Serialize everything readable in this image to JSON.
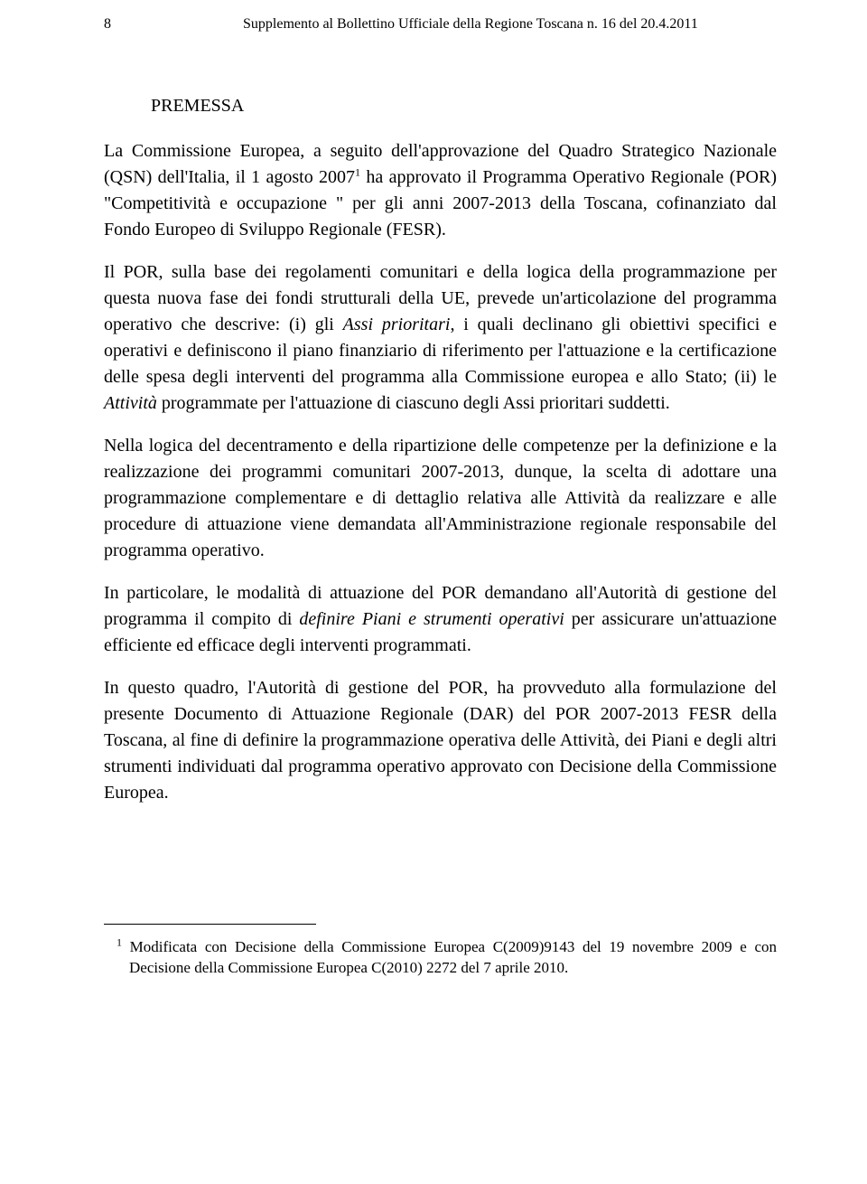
{
  "header": {
    "page_number": "8",
    "running_title": "Supplemento al Bollettino Ufficiale della Regione Toscana n. 16 del 20.4.2011"
  },
  "section_title": "PREMESSA",
  "paragraphs": {
    "p1_a": "La Commissione Europea, a seguito dell'approvazione del Quadro Strategico Nazionale (QSN) dell'Italia, il 1 agosto 2007",
    "p1_sup": "1",
    "p1_b": " ha approvato il Programma Operativo Regionale (POR) \"Competitività e occupazione \" per gli anni 2007-2013 della Toscana, cofinanziato dal Fondo Europeo di Sviluppo Regionale (FESR).",
    "p2_a": "Il POR, sulla base dei regolamenti comunitari e della logica della programmazione per questa nuova fase dei fondi strutturali della UE, prevede un'articolazione del programma operativo che descrive: (i) gli ",
    "p2_i1": "Assi prioritari",
    "p2_b": ", i quali declinano gli obiettivi specifici e operativi e definiscono il piano finanziario di riferimento per l'attuazione e la certificazione delle spesa degli interventi del programma alla Commissione europea e allo Stato; (ii) le ",
    "p2_i2": "Attività",
    "p2_c": " programmate per l'attuazione di ciascuno degli Assi prioritari suddetti.",
    "p3": "Nella logica del decentramento e della ripartizione delle competenze per la definizione e la realizzazione dei programmi comunitari 2007-2013, dunque, la scelta di adottare una programmazione complementare e di dettaglio relativa alle Attività da realizzare e alle procedure di attuazione viene demandata all'Amministrazione regionale responsabile del programma operativo.",
    "p4_a": "In particolare, le modalità di attuazione del POR demandano all'Autorità di gestione del programma il compito di ",
    "p4_i": "definire Piani e strumenti operativi",
    "p4_b": " per assicurare un'attuazione efficiente ed efficace degli interventi programmati.",
    "p5": "In questo quadro, l'Autorità di gestione del POR, ha provveduto alla formulazione del presente Documento di Attuazione Regionale (DAR) del POR 2007-2013 FESR della Toscana, al fine di definire la programmazione operativa delle Attività, dei Piani e degli altri strumenti individuati dal programma operativo approvato con Decisione della Commissione Europea."
  },
  "footnote": {
    "marker": "1",
    "text": " Modificata con Decisione della Commissione Europea C(2009)9143 del 19 novembre 2009 e con Decisione della Commissione Europea C(2010) 2272 del 7 aprile 2010."
  }
}
